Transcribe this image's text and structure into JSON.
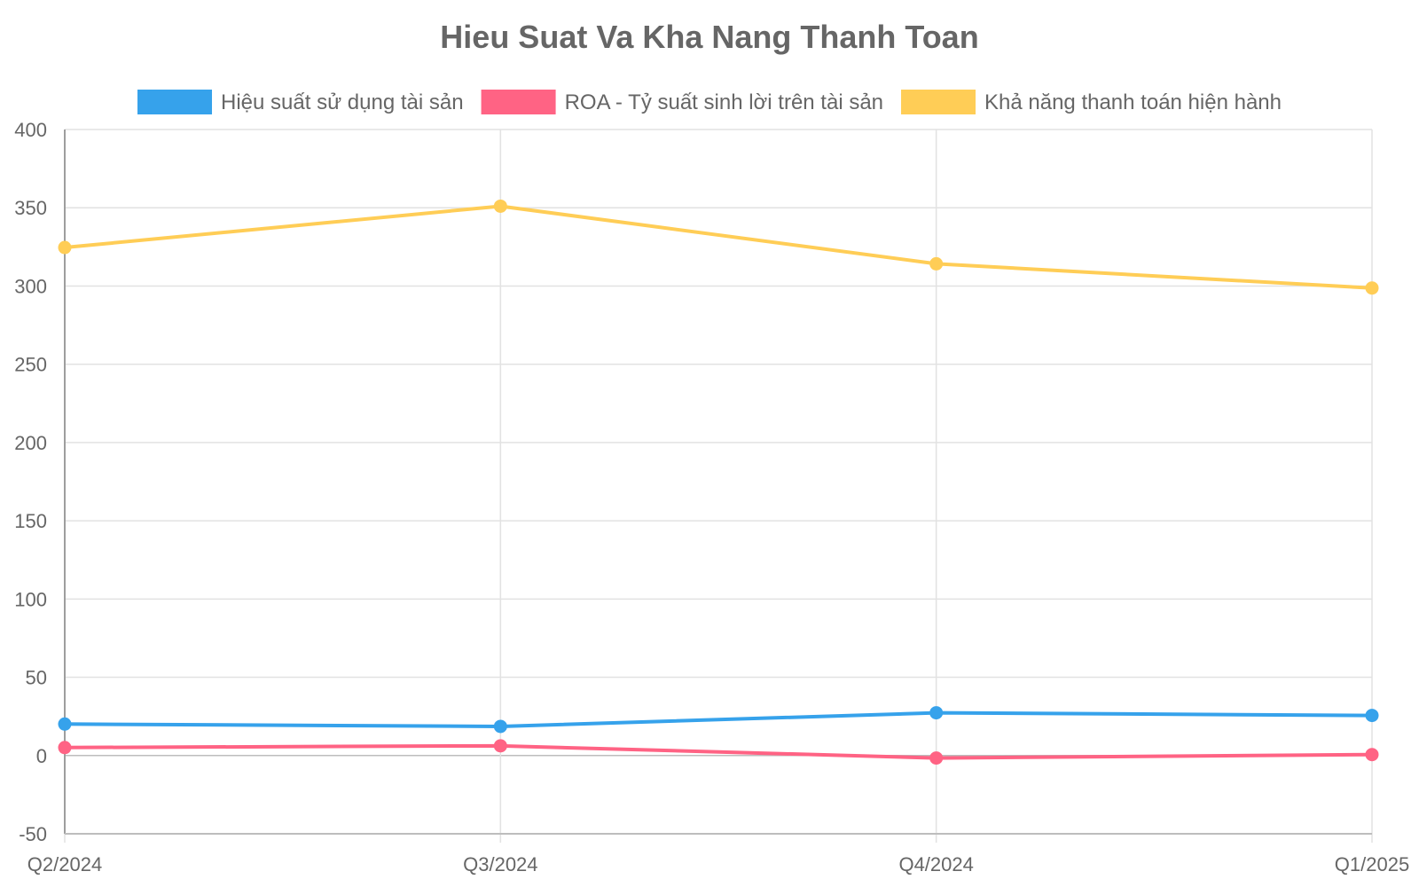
{
  "chart_data": {
    "type": "line",
    "title": "Hieu Suat Va Kha Nang Thanh Toan",
    "xlabel": "",
    "ylabel": "",
    "categories": [
      "Q2/2024",
      "Q3/2024",
      "Q4/2024",
      "Q1/2025"
    ],
    "ylim": [
      -50,
      400
    ],
    "yticks": [
      -50,
      0,
      50,
      100,
      150,
      200,
      250,
      300,
      350,
      400
    ],
    "grid": true,
    "legend_position": "top",
    "series": [
      {
        "name": "Hiệu suất sử dụng tài sản",
        "color": "#36A2EB",
        "values": [
          20.1,
          18.6,
          27.3,
          25.6
        ]
      },
      {
        "name": "ROA - Tỷ suất sinh lời trên tài sản",
        "color": "#FF6384",
        "values": [
          5.1,
          6.2,
          -1.6,
          0.6
        ]
      },
      {
        "name": "Khả năng thanh toán hiện hành",
        "color": "#FFCD56",
        "values": [
          324.6,
          351.0,
          314.2,
          298.7
        ]
      }
    ]
  }
}
